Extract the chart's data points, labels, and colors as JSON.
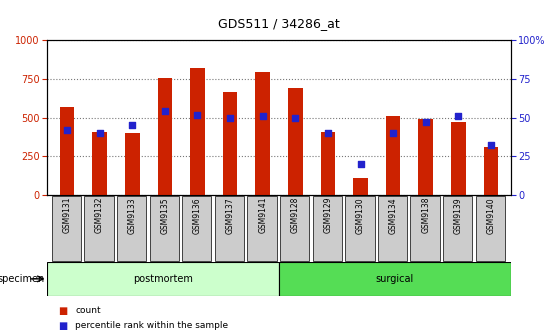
{
  "title": "GDS511 / 34286_at",
  "samples": [
    "GSM9131",
    "GSM9132",
    "GSM9133",
    "GSM9135",
    "GSM9136",
    "GSM9137",
    "GSM9141",
    "GSM9128",
    "GSM9129",
    "GSM9130",
    "GSM9134",
    "GSM9138",
    "GSM9139",
    "GSM9140"
  ],
  "counts": [
    570,
    410,
    400,
    755,
    820,
    665,
    795,
    690,
    410,
    110,
    510,
    490,
    470,
    310
  ],
  "percentiles": [
    42,
    40,
    45,
    54,
    52,
    50,
    51,
    50,
    40,
    20,
    40,
    47,
    51,
    32
  ],
  "groups": [
    {
      "label": "postmortem",
      "start": 0,
      "end": 7,
      "color": "#ccffcc"
    },
    {
      "label": "surgical",
      "start": 7,
      "end": 14,
      "color": "#55dd55"
    }
  ],
  "bar_color": "#cc2200",
  "marker_color": "#2222cc",
  "ylim_left": [
    0,
    1000
  ],
  "ylim_right": [
    0,
    100
  ],
  "yticks_left": [
    0,
    250,
    500,
    750,
    1000
  ],
  "yticks_right": [
    0,
    25,
    50,
    75,
    100
  ],
  "grid_color": "#777777",
  "bar_width": 0.45,
  "specimen_label": "specimen"
}
